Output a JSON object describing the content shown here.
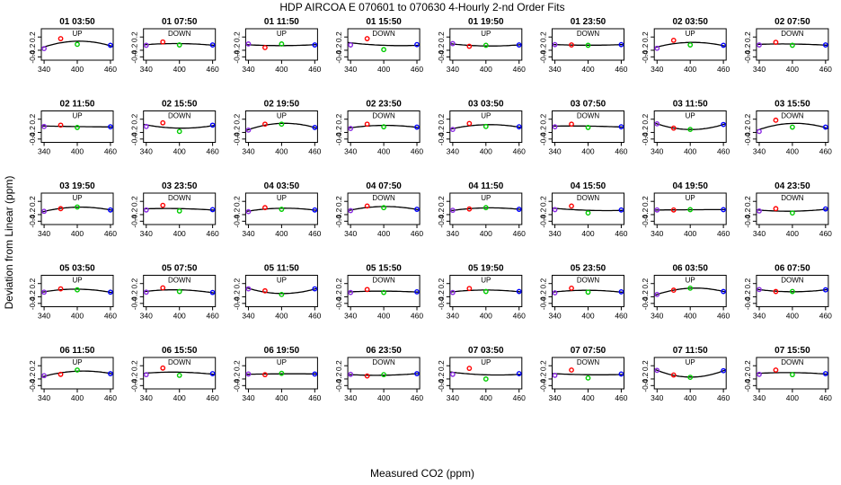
{
  "title": "HDP   AIRCOA E   070601 to 070630   4-Hourly 2-nd Order Fits",
  "xlabel": "Measured CO2 (ppm)",
  "ylabel": "Deviation from Linear (ppm)",
  "colors": {
    "c1": "#8a2be2",
    "c2": "#ff0000",
    "c3": "#00cc00",
    "c4": "#0000ff",
    "curve": "#000000"
  },
  "chart_data": {
    "type": "scatter",
    "x_ticks": [
      "340",
      "400",
      "460"
    ],
    "y_ticks": [
      "0.2",
      "-0.2",
      "-0.4"
    ],
    "xlim": [
      335,
      465
    ],
    "ylim": [
      -0.5,
      0.45
    ],
    "x": [
      340,
      370,
      400,
      460
    ],
    "series_colors": [
      "c1",
      "c2",
      "c3",
      "c4"
    ],
    "panels": [
      {
        "time": "01 03:50",
        "dir": "UP",
        "y": [
          -0.15,
          0.15,
          -0.02,
          -0.05
        ]
      },
      {
        "time": "01 07:50",
        "dir": "DOWN",
        "y": [
          -0.05,
          0.05,
          -0.04,
          -0.04
        ]
      },
      {
        "time": "01 11:50",
        "dir": "UP",
        "y": [
          -0.01,
          -0.12,
          -0.01,
          -0.04
        ]
      },
      {
        "time": "01 15:50",
        "dir": "DOWN",
        "y": [
          -0.04,
          0.15,
          -0.18,
          -0.03
        ]
      },
      {
        "time": "01 19:50",
        "dir": "UP",
        "y": [
          0.0,
          -0.08,
          -0.05,
          -0.04
        ]
      },
      {
        "time": "01 23:50",
        "dir": "DOWN",
        "y": [
          -0.03,
          -0.04,
          -0.05,
          -0.03
        ]
      },
      {
        "time": "02 03:50",
        "dir": "UP",
        "y": [
          -0.14,
          0.1,
          -0.04,
          -0.05
        ]
      },
      {
        "time": "02 07:50",
        "dir": "DOWN",
        "y": [
          -0.04,
          0.04,
          -0.05,
          -0.04
        ]
      },
      {
        "time": "02 11:50",
        "dir": "UP",
        "y": [
          -0.02,
          0.02,
          -0.05,
          -0.03
        ]
      },
      {
        "time": "02 15:50",
        "dir": "DOWN",
        "y": [
          -0.02,
          0.09,
          -0.17,
          0.02
        ]
      },
      {
        "time": "02 19:50",
        "dir": "UP",
        "y": [
          -0.13,
          0.05,
          0.05,
          -0.05
        ]
      },
      {
        "time": "02 23:50",
        "dir": "DOWN",
        "y": [
          -0.08,
          0.05,
          -0.03,
          -0.04
        ]
      },
      {
        "time": "03 03:50",
        "dir": "UP",
        "y": [
          -0.11,
          0.07,
          -0.02,
          -0.03
        ]
      },
      {
        "time": "03 07:50",
        "dir": "DOWN",
        "y": [
          -0.03,
          0.05,
          -0.05,
          -0.03
        ]
      },
      {
        "time": "03 11:50",
        "dir": "UP",
        "y": [
          0.06,
          -0.07,
          -0.11,
          0.04
        ]
      },
      {
        "time": "03 15:50",
        "dir": "DOWN",
        "y": [
          -0.17,
          0.17,
          -0.04,
          -0.04
        ]
      },
      {
        "time": "03 19:50",
        "dir": "UP",
        "y": [
          -0.1,
          -0.02,
          0.03,
          -0.06
        ]
      },
      {
        "time": "03 23:50",
        "dir": "DOWN",
        "y": [
          -0.06,
          0.08,
          -0.09,
          -0.05
        ]
      },
      {
        "time": "04 03:50",
        "dir": "UP",
        "y": [
          -0.11,
          0.01,
          -0.04,
          -0.06
        ]
      },
      {
        "time": "04 07:50",
        "dir": "DOWN",
        "y": [
          -0.08,
          0.06,
          0.01,
          -0.04
        ]
      },
      {
        "time": "04 11:50",
        "dir": "UP",
        "y": [
          -0.07,
          -0.03,
          0.01,
          -0.04
        ]
      },
      {
        "time": "04 15:50",
        "dir": "DOWN",
        "y": [
          -0.05,
          0.06,
          -0.15,
          -0.06
        ]
      },
      {
        "time": "04 19:50",
        "dir": "UP",
        "y": [
          -0.06,
          -0.06,
          -0.05,
          -0.05
        ]
      },
      {
        "time": "04 23:50",
        "dir": "DOWN",
        "y": [
          -0.09,
          -0.02,
          -0.15,
          -0.03
        ]
      },
      {
        "time": "05 03:50",
        "dir": "UP",
        "y": [
          -0.06,
          0.04,
          0.01,
          -0.06
        ]
      },
      {
        "time": "05 07:50",
        "dir": "DOWN",
        "y": [
          -0.06,
          0.07,
          -0.04,
          -0.07
        ]
      },
      {
        "time": "05 11:50",
        "dir": "UP",
        "y": [
          0.04,
          -0.02,
          -0.13,
          0.04
        ]
      },
      {
        "time": "05 15:50",
        "dir": "DOWN",
        "y": [
          -0.07,
          0.02,
          -0.07,
          -0.05
        ]
      },
      {
        "time": "05 19:50",
        "dir": "UP",
        "y": [
          -0.07,
          0.05,
          -0.04,
          -0.04
        ]
      },
      {
        "time": "05 23:50",
        "dir": "DOWN",
        "y": [
          -0.08,
          0.06,
          -0.06,
          -0.05
        ]
      },
      {
        "time": "06 03:50",
        "dir": "UP",
        "y": [
          -0.13,
          0.0,
          0.06,
          -0.04
        ]
      },
      {
        "time": "06 07:50",
        "dir": "DOWN",
        "y": [
          0.02,
          -0.04,
          -0.04,
          0.01
        ]
      },
      {
        "time": "06 11:50",
        "dir": "UP",
        "y": [
          -0.1,
          -0.06,
          0.07,
          -0.04
        ]
      },
      {
        "time": "06 15:50",
        "dir": "DOWN",
        "y": [
          -0.07,
          0.13,
          -0.09,
          -0.04
        ]
      },
      {
        "time": "06 19:50",
        "dir": "UP",
        "y": [
          -0.05,
          -0.07,
          -0.03,
          -0.05
        ]
      },
      {
        "time": "06 23:50",
        "dir": "DOWN",
        "y": [
          -0.06,
          -0.11,
          -0.07,
          -0.04
        ]
      },
      {
        "time": "07 03:50",
        "dir": "UP",
        "y": [
          -0.06,
          0.12,
          -0.2,
          -0.04
        ]
      },
      {
        "time": "07 07:50",
        "dir": "DOWN",
        "y": [
          -0.09,
          0.07,
          -0.17,
          -0.05
        ]
      },
      {
        "time": "07 11:50",
        "dir": "UP",
        "y": [
          0.06,
          -0.08,
          -0.15,
          0.05
        ]
      },
      {
        "time": "07 15:50",
        "dir": "DOWN",
        "y": [
          -0.06,
          0.07,
          -0.07,
          -0.04
        ]
      }
    ]
  }
}
